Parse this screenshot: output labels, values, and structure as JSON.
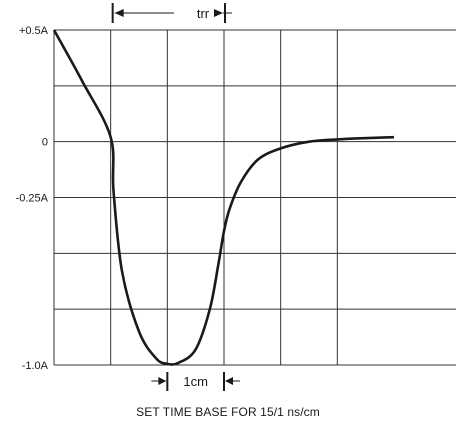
{
  "chart_data": {
    "type": "line",
    "y_tick_labels": [
      {
        "text": "+0.5A",
        "value": 0.5
      },
      {
        "text": "0",
        "value": 0
      },
      {
        "text": "-0.25A",
        "value": -0.25
      },
      {
        "text": "-1.0A",
        "value": -1.0
      }
    ],
    "ylim": [
      -1.0,
      0.5
    ],
    "xlim": [
      0,
      6
    ],
    "x_divisions": 6,
    "y_divisions": 6,
    "grid": true,
    "series": [
      {
        "x": [
          0,
          0.5,
          1.0,
          1.05,
          1.2,
          1.5,
          1.8,
          2.0,
          2.2,
          2.5,
          2.75,
          2.9,
          3.0,
          3.1,
          3.3,
          3.6,
          4.0,
          4.5,
          5.0,
          5.4,
          6.0
        ],
        "y": [
          0.5,
          0.27,
          0.02,
          -0.22,
          -0.58,
          -0.85,
          -0.97,
          -0.995,
          -0.99,
          -0.93,
          -0.75,
          -0.55,
          -0.4,
          -0.3,
          -0.18,
          -0.08,
          -0.03,
          0.0,
          0.01,
          0.015,
          0.02
        ],
        "color": "#1a1a1a"
      }
    ],
    "annotations": {
      "trr": {
        "label": "trr",
        "x_start": 1.0,
        "x_end": 3.0
      },
      "scale_marker": {
        "label": "1cm",
        "x_start": 2.0,
        "x_end": 3.0
      }
    },
    "caption": "SET TIME BASE FOR 15/1 ns/cm"
  }
}
